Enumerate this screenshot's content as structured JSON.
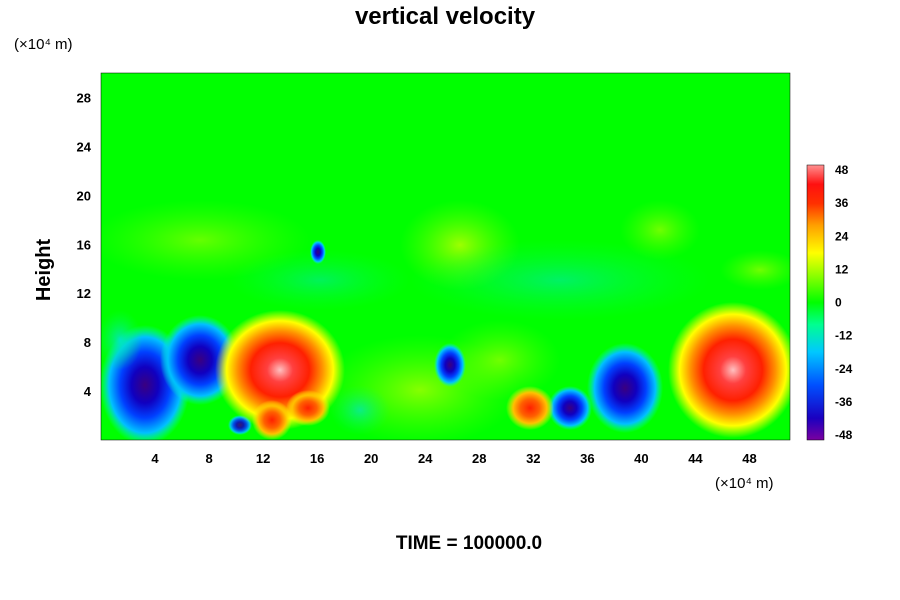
{
  "chart_data": {
    "type": "heatmap",
    "title": "vertical velocity",
    "ylabel": "Height",
    "x_unit": "(×10⁴ m)",
    "y_unit": "(×10⁴ m)",
    "xlim": [
      0,
      51
    ],
    "ylim": [
      0,
      30
    ],
    "x_ticks": [
      4,
      8,
      12,
      16,
      20,
      24,
      28,
      32,
      36,
      40,
      44,
      48
    ],
    "y_ticks": [
      4,
      8,
      12,
      16,
      20,
      24,
      28
    ],
    "colorbar": {
      "range": [
        -48,
        48
      ],
      "ticks": [
        48,
        36,
        24,
        12,
        0,
        -12,
        -24,
        -36,
        -48
      ]
    },
    "features": [
      {
        "x": 3.5,
        "y": 3.5,
        "value": -44
      },
      {
        "x": 7.5,
        "y": 6.0,
        "value": -40
      },
      {
        "x": 12.0,
        "y": 5.5,
        "value": 34
      },
      {
        "x": 13.0,
        "y": 1.5,
        "value": 30
      },
      {
        "x": 15.5,
        "y": 3.0,
        "value": 28
      },
      {
        "x": 26.0,
        "y": 6.0,
        "value": -36
      },
      {
        "x": 32.0,
        "y": 2.5,
        "value": 32
      },
      {
        "x": 34.5,
        "y": 2.5,
        "value": -38
      },
      {
        "x": 38.5,
        "y": 4.0,
        "value": -40
      },
      {
        "x": 46.5,
        "y": 5.5,
        "value": 46
      },
      {
        "x": 16.0,
        "y": 15.5,
        "value": -30
      }
    ],
    "footer": "TIME = 100000.0"
  },
  "colors": {
    "background_field": "#00ff00"
  }
}
